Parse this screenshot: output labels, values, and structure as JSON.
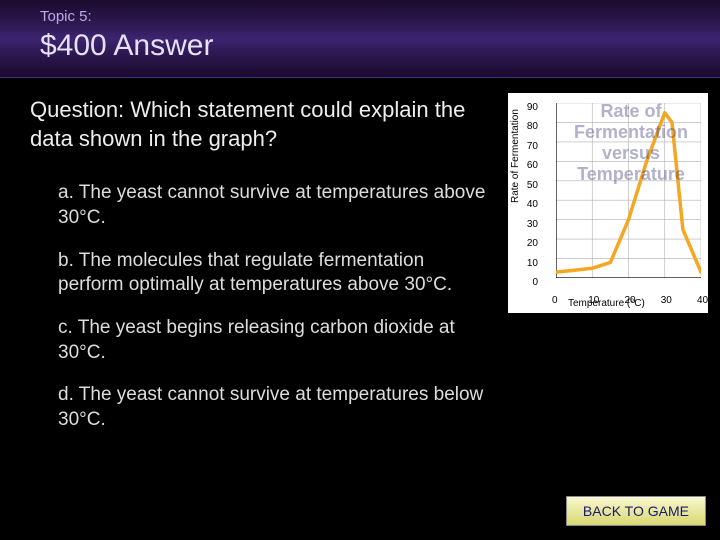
{
  "header": {
    "topic": "Topic 5:",
    "title": "$400 Answer"
  },
  "question": "Question: Which statement could explain the data shown in the graph?",
  "options": {
    "a": "a. The yeast cannot survive at temperatures above 30°C.",
    "b": "b. The molecules that regulate fermentation perform optimally at temperatures above 30°C.",
    "c": "c. The yeast begins releasing carbon dioxide at 30°C.",
    "d": "d. The yeast cannot survive at temperatures below 30°C."
  },
  "chart": {
    "type": "line",
    "title": "Rate of Fermentation versus Temperature",
    "ylabel": "Rate of Fermentation",
    "xlabel": "Temperature (°C)",
    "x_values": [
      0,
      5,
      10,
      15,
      20,
      25,
      30,
      32,
      35,
      40
    ],
    "y_values": [
      3,
      4,
      5,
      8,
      30,
      60,
      85,
      80,
      25,
      3
    ],
    "xlim": [
      0,
      40
    ],
    "ylim": [
      0,
      90
    ],
    "xtick_step": 10,
    "ytick_step": 10,
    "line_color": "#f5a623",
    "line_width": 3.5,
    "grid_color": "#b0b0b0",
    "background_color": "#ffffff",
    "axis_color": "#000000",
    "label_fontsize": 10,
    "title_fontsize": 18,
    "title_color": "rgba(60,60,120,0.4)"
  },
  "buttons": {
    "back": "BACK TO GAME"
  }
}
